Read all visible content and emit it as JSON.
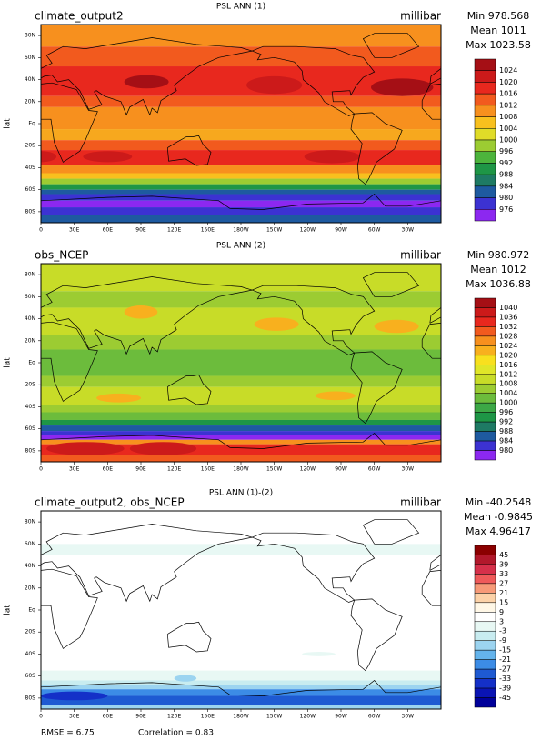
{
  "panels": [
    {
      "title": "PSL ANN (1)",
      "left": "climate_output2",
      "right": "millibar",
      "stats": [
        "Min 978.568",
        "Mean 1011",
        "Max 1023.58"
      ],
      "levels": [
        1024,
        1020,
        1016,
        1012,
        1008,
        1004,
        1000,
        996,
        992,
        988,
        984,
        980,
        976
      ],
      "colors": [
        "#a50f15",
        "#cc1a1a",
        "#e8281e",
        "#f25a1e",
        "#f7901e",
        "#f8c01e",
        "#e0dc28",
        "#9ccc32",
        "#4cb43c",
        "#1e9646",
        "#1e7a64",
        "#1e5aa0",
        "#3c32d2",
        "#8c28f0"
      ]
    },
    {
      "title": "PSL ANN (2)",
      "left": "obs_NCEP",
      "right": "millibar",
      "stats": [
        "Min 980.972",
        "Mean 1012",
        "Max 1036.88"
      ],
      "levels": [
        1040,
        1036,
        1032,
        1028,
        1024,
        1020,
        1016,
        1012,
        1008,
        1004,
        1000,
        996,
        992,
        988,
        984,
        980
      ],
      "colors": [
        "#a50f15",
        "#cc1a1a",
        "#e8281e",
        "#f25a1e",
        "#f7901e",
        "#f8b01e",
        "#f8e01e",
        "#e0e628",
        "#c8dc28",
        "#9ccc32",
        "#6cbc3c",
        "#3ca846",
        "#1e9646",
        "#1e7a64",
        "#1e5aa0",
        "#3c32d2",
        "#8c28f0"
      ]
    },
    {
      "title": "PSL ANN (1)-(2)",
      "left": "climate_output2, obs_NCEP",
      "right": "millibar",
      "stats": [
        "Min -40.2548",
        "Mean -0.9845",
        "Max 4.96417"
      ],
      "levels": [
        45,
        39,
        33,
        27,
        21,
        15,
        9,
        3,
        -3,
        -9,
        -15,
        -21,
        -27,
        -33,
        -39,
        -45
      ],
      "colors": [
        "#8b0000",
        "#b2182b",
        "#d6304a",
        "#ef5a5a",
        "#f79a78",
        "#fcd2a8",
        "#fff7e6",
        "#ffffff",
        "#e8f8f4",
        "#c8ecf0",
        "#9cd4f0",
        "#64b4ec",
        "#3c8ce6",
        "#1e5ad2",
        "#1430c8",
        "#0a14b4",
        "#00009a"
      ]
    }
  ],
  "x_labels": [
    "0",
    "30E",
    "60E",
    "90E",
    "120E",
    "150E",
    "180W",
    "150W",
    "120W",
    "90W",
    "60W",
    "30W"
  ],
  "y_labels": [
    "80N",
    "60N",
    "40N",
    "20N",
    "Eq",
    "20S",
    "40S",
    "60S",
    "80S"
  ],
  "y_axis_label": "lat",
  "footer": {
    "rmse": "RMSE = 6.75",
    "correlation": "Correlation = 0.83"
  }
}
